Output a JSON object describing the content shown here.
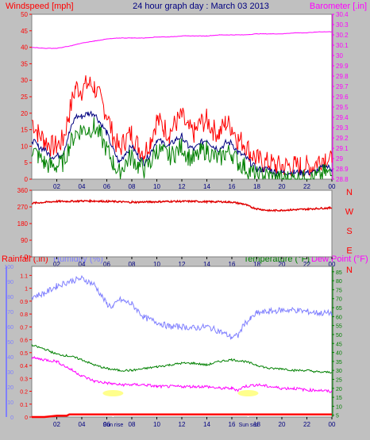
{
  "header": {
    "wind_label": "Windspeed [mph]",
    "title": "24 hour graph day : March 03 2013",
    "baro_label": "Barometer [.in]"
  },
  "lower_labels": {
    "rain": "Rainfall (.in)",
    "humidity": "Humidity (%)",
    "temperature": "Temperature (°F)",
    "dew": "Dew Point (°F)"
  },
  "annotations": {
    "sunrise": "Sun rise",
    "sunset": "Sun set"
  },
  "colors": {
    "background": "#c0c0c0",
    "plot": "#ffffff",
    "gust": "#ff0000",
    "avg_wind": "#000080",
    "wind_low": "#008000",
    "barometer": "#ff00ff",
    "direction": "#e00000",
    "humidity": "#8080ff",
    "temperature": "#008000",
    "dewpoint": "#ff00ff",
    "rain_axis": "#8080ff",
    "rain": "#ff0000",
    "compass": "#ff0000"
  },
  "chart_data": [
    {
      "type": "line",
      "name": "wind-barometer",
      "x_ticks": [
        "02",
        "04",
        "06",
        "08",
        "10",
        "12",
        "14",
        "16",
        "18",
        "20",
        "22",
        "00"
      ],
      "xlim": [
        0,
        24
      ],
      "left_axis": {
        "ticks": [
          "0",
          "5",
          "10",
          "15",
          "20",
          "25",
          "30",
          "35",
          "40",
          "45",
          "50"
        ],
        "ylim": [
          0,
          50
        ]
      },
      "right_axis": {
        "ticks": [
          "28.8",
          "28.9",
          "29",
          "29.1",
          "29.2",
          "29.3",
          "29.4",
          "29.5",
          "29.6",
          "29.7",
          "29.8",
          "29.9",
          "30",
          "30.1",
          "30.2",
          "30.3",
          "30.4"
        ],
        "ylim": [
          28.8,
          30.4
        ]
      },
      "series": [
        {
          "name": "gust",
          "axis": "left",
          "x": [
            0,
            0.5,
            1,
            1.5,
            2,
            2.5,
            3,
            3.5,
            4,
            4.5,
            5,
            5.5,
            6,
            6.5,
            7,
            7.5,
            8,
            8.5,
            9,
            9.5,
            10,
            10.5,
            11,
            11.5,
            12,
            12.5,
            13,
            13.5,
            14,
            14.5,
            15,
            15.5,
            16,
            16.5,
            17,
            17.5,
            18,
            18.5,
            19,
            19.5,
            20,
            20.5,
            21,
            21.5,
            22,
            22.5,
            23,
            23.5,
            24
          ],
          "values": [
            18,
            14,
            12,
            10,
            10,
            12,
            20,
            28,
            27,
            29,
            28,
            24,
            20,
            13,
            9,
            12,
            14,
            10,
            8,
            12,
            18,
            16,
            14,
            17,
            19,
            15,
            14,
            17,
            18,
            15,
            14,
            17,
            16,
            12,
            11,
            8,
            6,
            5,
            5,
            4,
            4,
            4,
            4,
            4,
            4,
            4,
            6,
            7,
            5
          ]
        },
        {
          "name": "average",
          "axis": "left",
          "x": [
            0,
            0.5,
            1,
            1.5,
            2,
            2.5,
            3,
            3.5,
            4,
            4.5,
            5,
            5.5,
            6,
            6.5,
            7,
            7.5,
            8,
            8.5,
            9,
            9.5,
            10,
            10.5,
            11,
            11.5,
            12,
            12.5,
            13,
            13.5,
            14,
            14.5,
            15,
            15.5,
            16,
            16.5,
            17,
            17.5,
            18,
            18.5,
            19,
            19.5,
            20,
            20.5,
            21,
            21.5,
            22,
            22.5,
            23,
            23.5,
            24
          ],
          "values": [
            12,
            10,
            9,
            7,
            7,
            8,
            14,
            19,
            19,
            20,
            20,
            17,
            14,
            9,
            5,
            8,
            10,
            7,
            5,
            8,
            12,
            11,
            10,
            12,
            13,
            10,
            9,
            11,
            12,
            10,
            9,
            11,
            11,
            8,
            7,
            5,
            3,
            3,
            3,
            2,
            2,
            2,
            2,
            2,
            2,
            2,
            3,
            4,
            3
          ]
        },
        {
          "name": "low",
          "axis": "left",
          "x": [
            0,
            0.5,
            1,
            1.5,
            2,
            2.5,
            3,
            3.5,
            4,
            4.5,
            5,
            5.5,
            6,
            6.5,
            7,
            7.5,
            8,
            8.5,
            9,
            9.5,
            10,
            10.5,
            11,
            11.5,
            12,
            12.5,
            13,
            13.5,
            14,
            14.5,
            15,
            15.5,
            16,
            16.5,
            17,
            17.5,
            18,
            18.5,
            19,
            19.5,
            20,
            20.5,
            21,
            21.5,
            22,
            22.5,
            23,
            23.5,
            24
          ],
          "values": [
            9,
            7,
            5,
            4,
            4,
            5,
            10,
            14,
            15,
            15,
            16,
            13,
            9,
            5,
            2,
            5,
            7,
            4,
            3,
            5,
            9,
            8,
            7,
            8,
            10,
            7,
            6,
            8,
            9,
            7,
            6,
            8,
            8,
            5,
            4,
            2,
            1,
            1,
            1,
            0,
            0,
            0,
            0,
            0,
            0,
            0,
            1,
            2,
            1
          ]
        },
        {
          "name": "barometer",
          "axis": "right",
          "x": [
            0,
            1,
            2,
            3,
            4,
            5,
            6,
            7,
            8,
            9,
            10,
            11,
            12,
            13,
            14,
            15,
            16,
            17,
            18,
            19,
            20,
            21,
            22,
            23,
            24
          ],
          "values": [
            30.08,
            30.07,
            30.07,
            30.09,
            30.12,
            30.14,
            30.16,
            30.17,
            30.17,
            30.17,
            30.18,
            30.18,
            30.19,
            30.19,
            30.19,
            30.2,
            30.2,
            30.2,
            30.21,
            30.21,
            30.21,
            30.22,
            30.22,
            30.23,
            30.23
          ]
        }
      ]
    },
    {
      "type": "line",
      "name": "wind-direction",
      "x_ticks": [
        "02",
        "04",
        "06",
        "08",
        "10",
        "12",
        "14",
        "16",
        "18",
        "20",
        "22",
        "00"
      ],
      "xlim": [
        0,
        24
      ],
      "ticks": [
        "0",
        "90",
        "180",
        "270",
        "360"
      ],
      "compass": [
        "N",
        "W",
        "S",
        "E",
        "N"
      ],
      "ylim": [
        0,
        360
      ],
      "series": [
        {
          "name": "direction",
          "x": [
            0,
            1,
            2,
            3,
            4,
            5,
            6,
            7,
            8,
            9,
            10,
            11,
            12,
            13,
            14,
            15,
            16,
            16.5,
            17,
            17.5,
            18,
            18.5,
            19,
            20,
            21,
            22,
            23,
            24
          ],
          "values": [
            290,
            295,
            300,
            300,
            302,
            302,
            300,
            298,
            295,
            297,
            298,
            300,
            300,
            300,
            298,
            298,
            296,
            290,
            285,
            270,
            260,
            255,
            250,
            252,
            255,
            258,
            262,
            265
          ]
        }
      ]
    },
    {
      "type": "line",
      "name": "humidity-temperature-rain",
      "x_ticks": [
        "02",
        "04",
        "06",
        "08",
        "10",
        "12",
        "14",
        "16",
        "18",
        "20",
        "22",
        "00"
      ],
      "xlim": [
        0,
        24
      ],
      "humidity_axis": {
        "ticks": [
          "0",
          "10",
          "20",
          "30",
          "40",
          "50",
          "60",
          "70",
          "80",
          "90",
          "100"
        ],
        "ylim": [
          0,
          100
        ]
      },
      "rain_axis": {
        "ticks": [
          "0",
          "0.1",
          "0.2",
          "0.3",
          "0.4",
          "0.5",
          "0.6",
          "0.7",
          "0.8",
          "0.9",
          "1",
          "1.1"
        ],
        "ylim": [
          0,
          1.17
        ]
      },
      "temperature_axis": {
        "ticks": [
          "5",
          "10",
          "15",
          "20",
          "25",
          "30",
          "35",
          "40",
          "45",
          "50",
          "55",
          "60",
          "65",
          "70",
          "75",
          "80",
          "85"
        ],
        "ylim": [
          4,
          88
        ]
      },
      "series": [
        {
          "name": "humidity",
          "axis": "humidity",
          "x": [
            0,
            1,
            2,
            3,
            4,
            5,
            6,
            6.5,
            7,
            8,
            9,
            10,
            11,
            12,
            13,
            14,
            15,
            16,
            16.5,
            17,
            17.5,
            18,
            19,
            20,
            21,
            22,
            23,
            24
          ],
          "values": [
            80,
            82,
            87,
            90,
            92,
            88,
            75,
            73,
            78,
            75,
            66,
            63,
            60,
            60,
            59,
            60,
            57,
            53,
            54,
            62,
            65,
            69,
            70,
            71,
            71,
            70,
            69,
            69
          ]
        },
        {
          "name": "temperature",
          "axis": "temperature",
          "x": [
            0,
            1,
            2,
            3,
            4,
            5,
            6,
            7,
            8,
            9,
            10,
            11,
            12,
            13,
            14,
            15,
            16,
            17,
            18,
            19,
            20,
            21,
            22,
            23,
            24
          ],
          "values": [
            44,
            42,
            39,
            38,
            36,
            33,
            31,
            30,
            30,
            31,
            32,
            33,
            34,
            34,
            33,
            35,
            36,
            35,
            33,
            31,
            31,
            30,
            30,
            29,
            29
          ]
        },
        {
          "name": "dewpoint",
          "axis": "temperature",
          "x": [
            0,
            1,
            2,
            3,
            4,
            5,
            6,
            7,
            8,
            9,
            10,
            11,
            12,
            13,
            14,
            15,
            16,
            16.5,
            17,
            18,
            19,
            20,
            21,
            22,
            23,
            24
          ],
          "values": [
            37,
            36,
            35,
            31,
            27,
            24,
            23,
            22,
            22,
            22,
            21,
            21,
            21,
            21,
            21,
            20,
            20,
            19,
            21,
            22,
            21,
            20,
            20,
            19,
            19,
            18
          ]
        },
        {
          "name": "rainfall",
          "axis": "rain",
          "x": [
            0,
            1,
            2,
            2.8,
            3,
            24
          ],
          "values": [
            0,
            0,
            0.01,
            0.01,
            0.02,
            0.02
          ]
        }
      ],
      "sunrise_x": 6.5,
      "sunset_x": 17.3
    }
  ]
}
